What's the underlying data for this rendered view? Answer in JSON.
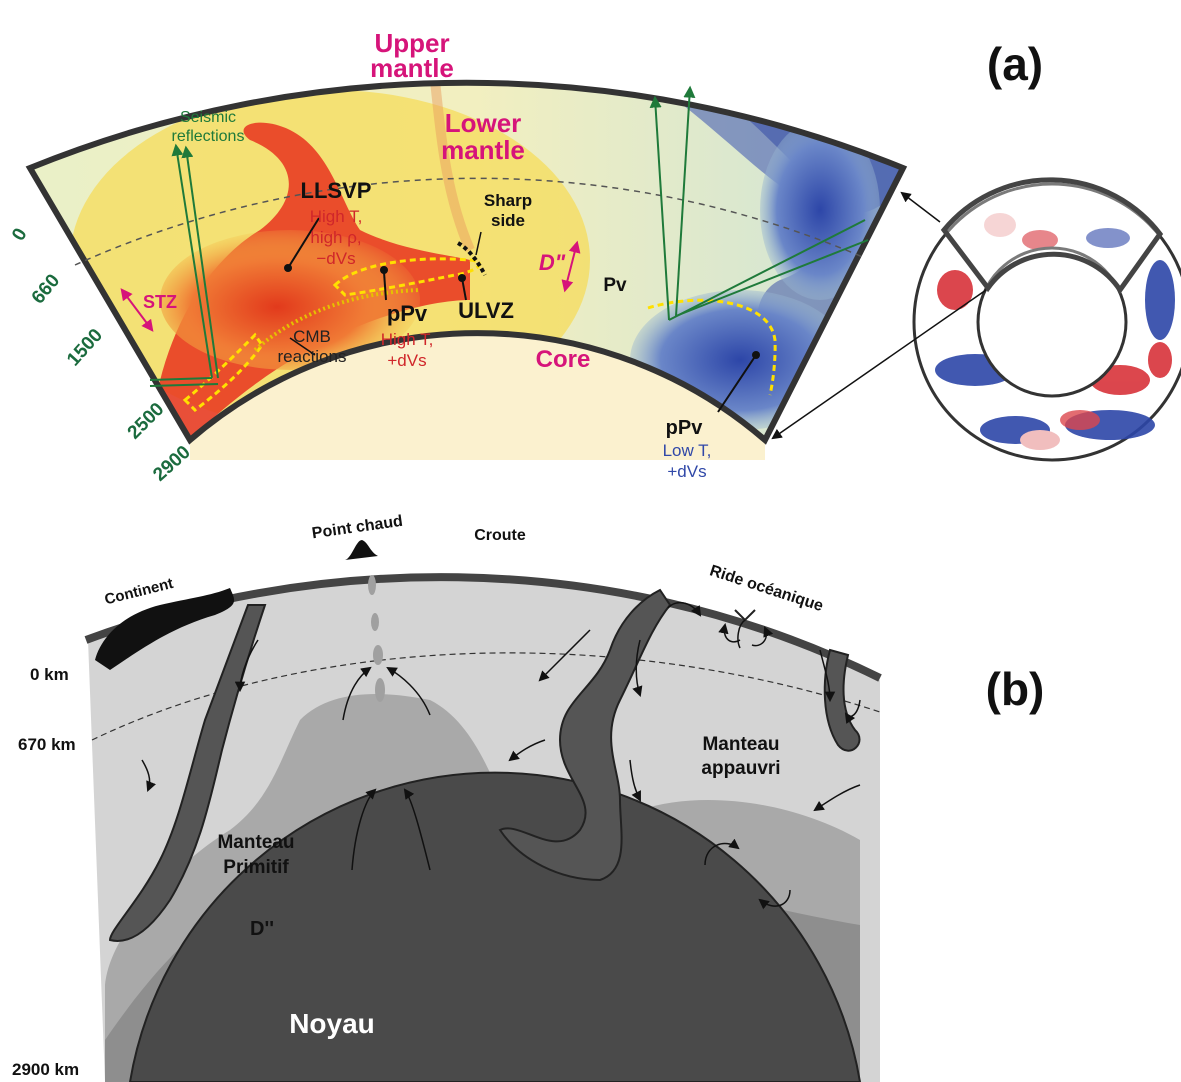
{
  "panel_a": {
    "label": "(a)",
    "upper_mantle": [
      "Upper",
      "mantle"
    ],
    "lower_mantle": [
      "Lower",
      "mantle"
    ],
    "seismic_reflections": [
      "Seismic",
      "reflections"
    ],
    "llsvp": {
      "name": "LLSVP",
      "lines": [
        "High T,",
        "high ρ,",
        "−dVs"
      ]
    },
    "sharp_side": [
      "Sharp",
      "side"
    ],
    "d_double_prime": "D\"",
    "stz": "STZ",
    "pv": "Pv",
    "ppv_left": {
      "name": "pPv",
      "lines": [
        "High T,",
        "+dVs"
      ]
    },
    "ulvz": "ULVZ",
    "cmb_reactions": [
      "CMB",
      "reactions"
    ],
    "core": "Core",
    "ppv_right": {
      "name": "pPv",
      "lines": [
        "Low T,",
        "+dVs"
      ]
    },
    "depths": [
      "0",
      "660",
      "1500",
      "2500",
      "2900"
    ],
    "colors": {
      "hot": "#e8321e",
      "warm": "#f5d24a",
      "neutral": "#d9ecd8",
      "cold": "#3a52b0",
      "core": "#fbf1cf",
      "magenta": "#d6147a",
      "green": "#1f7a3a"
    }
  },
  "panel_b": {
    "label": "(b)",
    "point_chaud": "Point chaud",
    "croute": "Croute",
    "continent": "Continent",
    "ride_oceanique": "Ride océanique",
    "depths": [
      "0 km",
      "670 km",
      "2900 km"
    ],
    "manteau_appauvri": [
      "Manteau",
      "appauvri"
    ],
    "manteau_primitif": [
      "Manteau",
      "Primitif"
    ],
    "d_double_prime": "D''",
    "noyau": "Noyau",
    "colors": {
      "mantle": "#d4d4d4",
      "primitive": "#a6a6a6",
      "dprime": "#8c8c8c",
      "core": "#4a4a4a",
      "slab": "#555555"
    }
  }
}
